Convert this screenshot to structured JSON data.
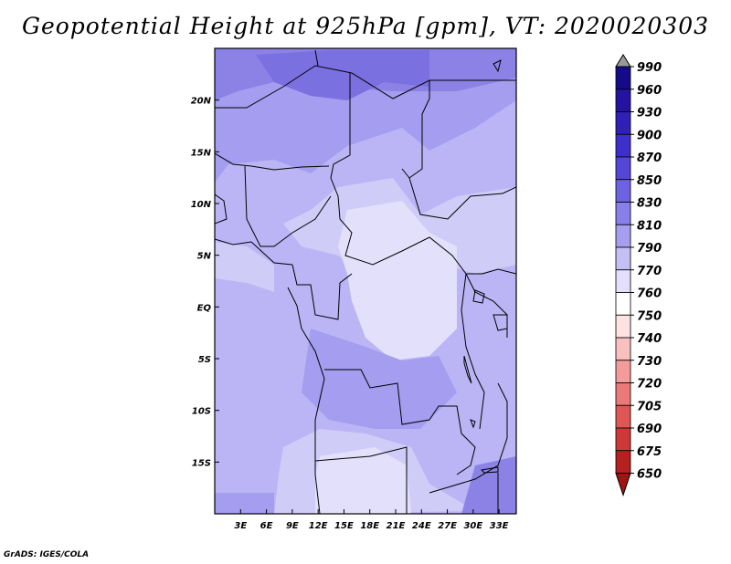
{
  "title": "Geopotential Height at 925hPa [gpm], VT: 2020020303",
  "credit": "GrADS: IGES/COLA",
  "map": {
    "lon_labels": [
      "3E",
      "6E",
      "9E",
      "12E",
      "15E",
      "18E",
      "21E",
      "24E",
      "27E",
      "30E",
      "33E"
    ],
    "lat_labels": [
      "20N",
      "15N",
      "10N",
      "5N",
      "EQ",
      "5S",
      "10S",
      "15S"
    ],
    "lon_range": [
      0,
      35
    ],
    "lat_range": [
      -20,
      25
    ]
  },
  "colorbar": {
    "levels": [
      "990",
      "960",
      "930",
      "900",
      "870",
      "850",
      "830",
      "810",
      "790",
      "770",
      "760",
      "750",
      "740",
      "730",
      "720",
      "705",
      "690",
      "675",
      "650"
    ],
    "colors": [
      "#9a9a9a",
      "#150b8a",
      "#2413a1",
      "#3020b8",
      "#3d2fcc",
      "#5447d8",
      "#6d63e0",
      "#887fe8",
      "#a69ff0",
      "#c4bff5",
      "#e2e0fb",
      "#ffffff",
      "#fde2e2",
      "#f9c0c0",
      "#f49c9c",
      "#ec7878",
      "#e05656",
      "#cf3838",
      "#b52020",
      "#a01414"
    ]
  },
  "field_colors": {
    "c850": "#8c82e6",
    "c830": "#a49df0",
    "c810": "#bbb5f5",
    "c790": "#d0ccf8",
    "c770": "#e2e0fb",
    "c870": "#7a70df"
  }
}
